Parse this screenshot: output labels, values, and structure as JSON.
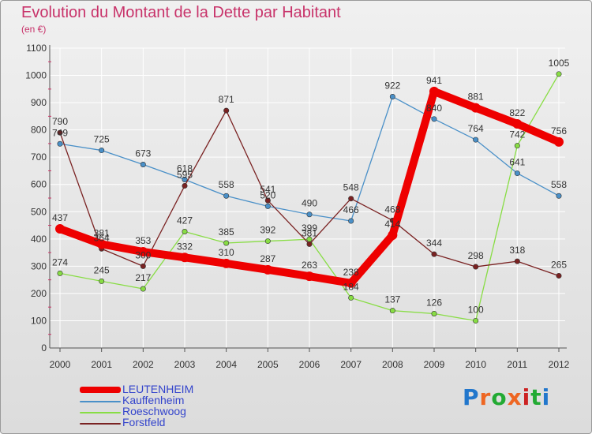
{
  "header": {
    "title": "Evolution du Montant de la Dette par Habitant",
    "subtitle": "(en €)"
  },
  "brand": {
    "text": "Proxiti",
    "colors": [
      "#2277cc",
      "#ee6622",
      "#22aa33",
      "#ee6622",
      "#cc2222",
      "#22aa33",
      "#2277cc"
    ]
  },
  "chart_data": {
    "type": "line",
    "title": "Evolution du Montant de la Dette par Habitant",
    "subtitle": "(en €)",
    "xlabel": "",
    "ylabel": "",
    "ylim": [
      0,
      1100
    ],
    "yticks": [
      0,
      100,
      200,
      300,
      400,
      500,
      600,
      700,
      800,
      900,
      1000,
      1100
    ],
    "grid": true,
    "legend": "bottom-left",
    "categories": [
      "2000",
      "2001",
      "2002",
      "2003",
      "2004",
      "2005",
      "2006",
      "2007",
      "2008",
      "2009",
      "2010",
      "2011",
      "2012"
    ],
    "series": [
      {
        "name": "LEUTENHEIM",
        "color": "#ee0000",
        "values": [
          437,
          381,
          353,
          332,
          310,
          287,
          263,
          238,
          414,
          941,
          881,
          822,
          756
        ]
      },
      {
        "name": "Kauffenheim",
        "color": "#4a90c8",
        "values": [
          749,
          725,
          673,
          618,
          558,
          520,
          490,
          466,
          922,
          840,
          764,
          641,
          558
        ]
      },
      {
        "name": "Roeschwoog",
        "color": "#88dd44",
        "values": [
          274,
          245,
          217,
          427,
          385,
          392,
          399,
          184,
          137,
          126,
          100,
          742,
          1005
        ]
      },
      {
        "name": "Forstfeld",
        "color": "#7a2222",
        "values": [
          790,
          364,
          300,
          595,
          871,
          541,
          381,
          548,
          468,
          344,
          298,
          318,
          265
        ]
      }
    ]
  }
}
